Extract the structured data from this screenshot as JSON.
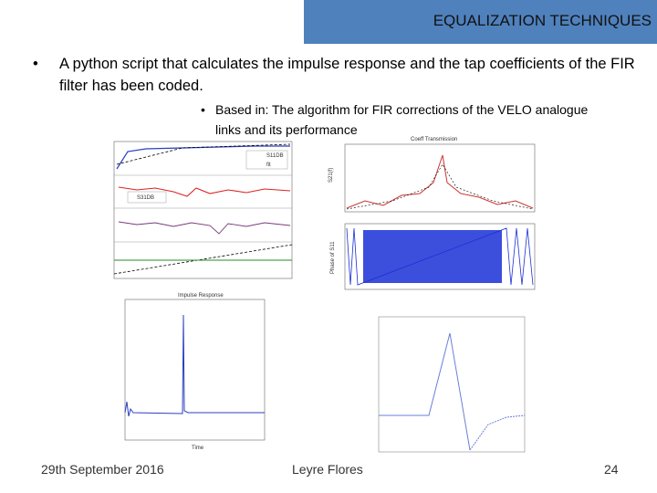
{
  "header": {
    "title": "EQUALIZATION TECHNIQUES"
  },
  "body": {
    "bullet": "A python script that calculates the impulse response and the tap coefficients of the FIR filter has been coded.",
    "sub_bullet": "Based in: The algorithm for FIR corrections of the VELO analogue links and its performance"
  },
  "figures": {
    "panel_top_left": {
      "legend": [
        "S11DB",
        "fit",
        "S31DB"
      ]
    },
    "panel_top_right": {
      "title": "Coeff Transmission",
      "ylabel": "S21(f)",
      "ylabel2": "Phase of S11"
    },
    "panel_bottom_left": {
      "title": "Impulse Response",
      "xlabel": "Time"
    }
  },
  "footer": {
    "date": "29th September 2016",
    "author": "Leyre Flores",
    "page": "24"
  }
}
